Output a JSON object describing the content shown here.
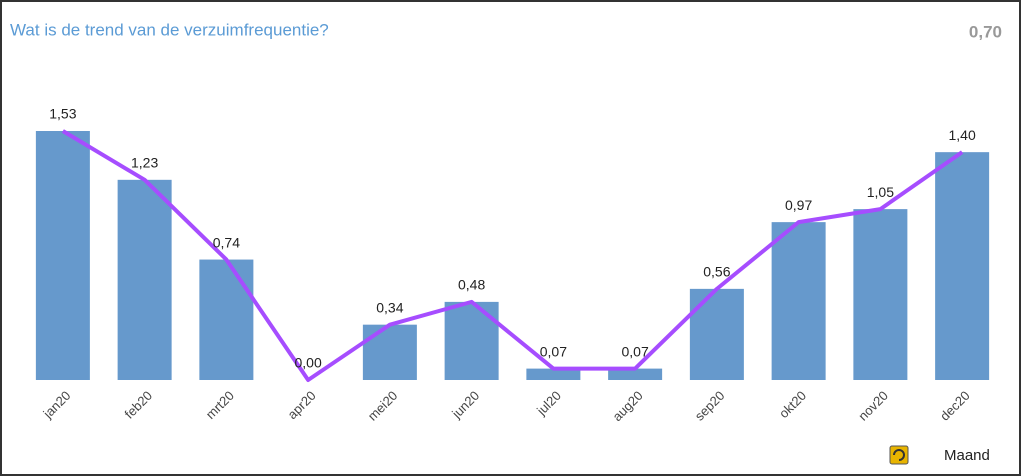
{
  "chart_data": {
    "type": "bar",
    "title": "Wat is de trend van de verzuimfrequentie?",
    "summary": "0,70",
    "button_label": "Maand",
    "categories": [
      "jan20",
      "feb20",
      "mrt20",
      "apr20",
      "mei20",
      "jun20",
      "jul20",
      "aug20",
      "sep20",
      "okt20",
      "nov20",
      "dec20"
    ],
    "values": [
      1.53,
      1.23,
      0.74,
      0.0,
      0.34,
      0.48,
      0.07,
      0.07,
      0.56,
      0.97,
      1.05,
      1.4
    ],
    "value_labels": [
      "1,53",
      "1,23",
      "0,74",
      "0,00",
      "0,34",
      "0,48",
      "0,07",
      "0,07",
      "0,56",
      "0,97",
      "1,05",
      "1,40"
    ],
    "color": "#6699cc",
    "line_color": "#a64dff"
  }
}
